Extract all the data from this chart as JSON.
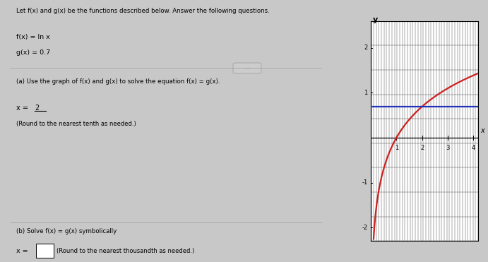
{
  "title_text": "Let f(x) and g(x) be the functions described below. Answer the following questions.",
  "fx_label": "f(x) = ln x",
  "gx_label": "g(x) = 0.7",
  "part_a_label": "(a) Use the graph of f(x) and g(x) to solve the equation f(x) = g(x).",
  "part_a_answer_prefix": "x = ",
  "part_a_answer_val": "2",
  "part_a_note": "(Round to the nearest tenth as needed.)",
  "part_b_label": "(b) Solve f(x) = g(x) symbolically",
  "part_b_note": "(Round to the nearest thousandth as needed.)",
  "bg_color": "#c8c8c8",
  "panel_bg": "#d4d4d4",
  "graph_bg": "#ffffff",
  "fx_color": "#cc2020",
  "gx_color": "#2233bb",
  "xlim": [
    0,
    4.2
  ],
  "ylim": [
    -2.3,
    2.6
  ],
  "xticks": [
    1,
    2,
    3,
    4
  ],
  "yticks": [
    -2,
    -1,
    0,
    1,
    2
  ],
  "g_value": 0.7,
  "graph_grid_color_v": "#555555",
  "graph_grid_color_h": "#555555",
  "divider_color": "#aaaaaa",
  "n_vgrid": 42,
  "n_hgrid": 10
}
